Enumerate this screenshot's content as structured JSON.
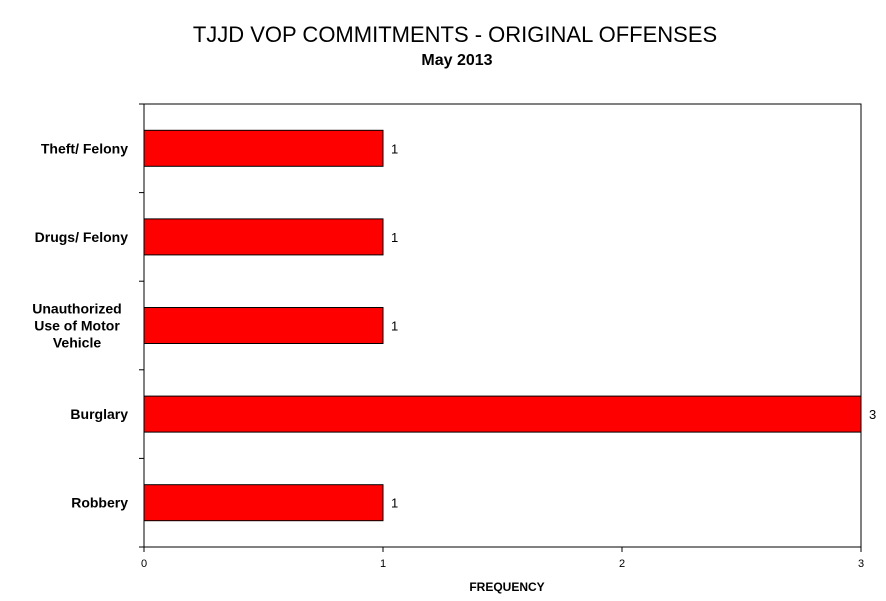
{
  "chart_data": {
    "type": "bar",
    "orientation": "horizontal",
    "title": "TJJD VOP COMMITMENTS - ORIGINAL OFFENSES",
    "subtitle": "May 2013",
    "xlabel": "FREQUENCY",
    "ylabel": "",
    "categories": [
      "Theft/ Felony",
      "Drugs/ Felony",
      "Unauthorized Use of Motor Vehicle",
      "Burglary",
      "Robbery"
    ],
    "category_label_lines": [
      [
        "Theft/ Felony"
      ],
      [
        "Drugs/ Felony"
      ],
      [
        "Unauthorized",
        "Use of Motor",
        "Vehicle"
      ],
      [
        "Burglary"
      ],
      [
        "Robbery"
      ]
    ],
    "values": [
      1,
      1,
      1,
      3,
      1
    ],
    "data_labels": [
      "1",
      "1",
      "1",
      "3",
      "1"
    ],
    "xlim": [
      0,
      3
    ],
    "x_ticks": [
      0,
      1,
      2,
      3
    ],
    "x_tick_labels": [
      "0",
      "1",
      "2",
      "3"
    ],
    "bar_color": "#ff0000",
    "bar_edge_color": "#000000",
    "grid": false,
    "legend": "none"
  }
}
